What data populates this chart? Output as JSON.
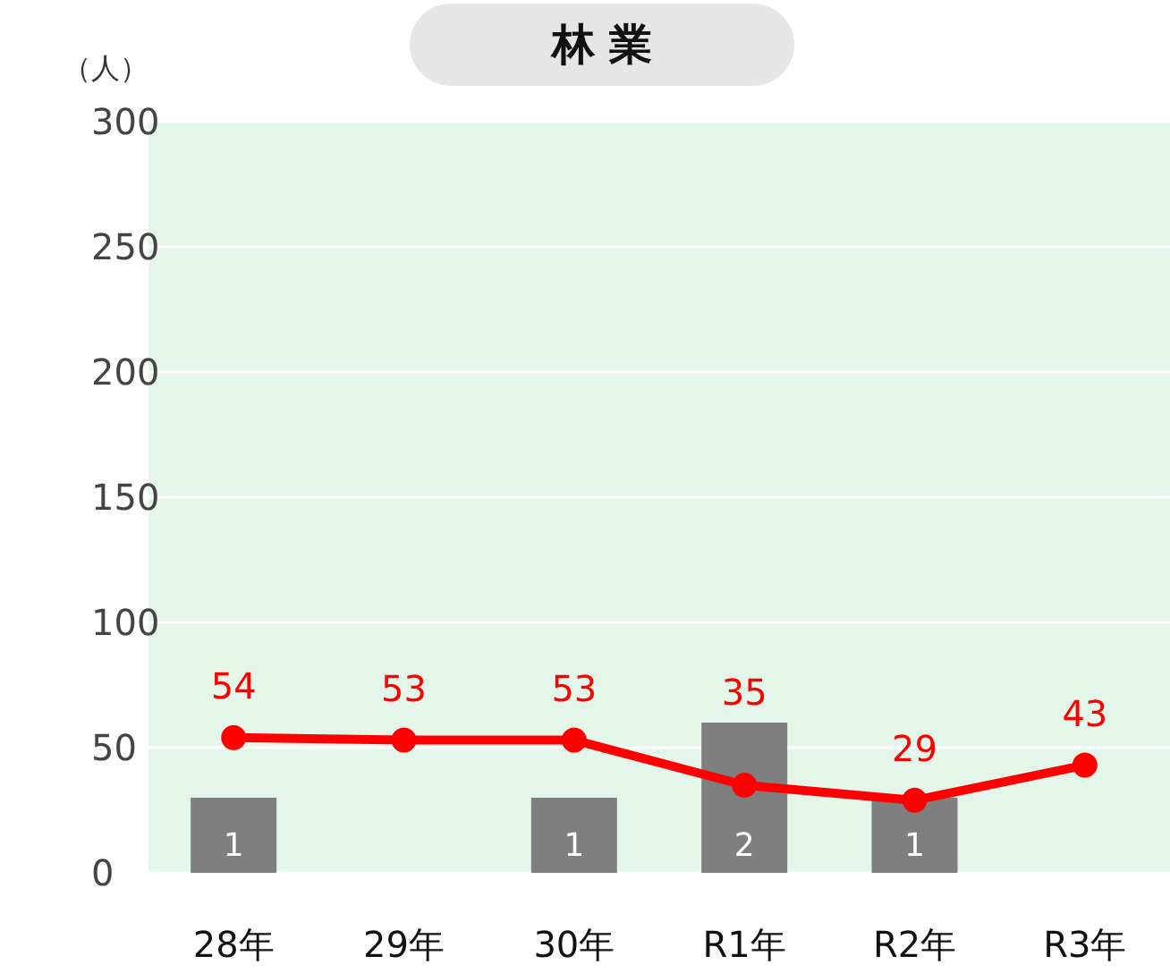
{
  "chart_data": {
    "type": "line",
    "title": "林 業",
    "ylabel": "（人）",
    "categories": [
      "28年",
      "29年",
      "30年",
      "R1年",
      "R2年",
      "R3年"
    ],
    "series": [
      {
        "type": "bar",
        "axis": "y2",
        "color": "#7f7f7f",
        "values": [
          1,
          null,
          1,
          2,
          1,
          null
        ]
      },
      {
        "color": "#ff0000",
        "values": [
          54,
          53,
          53,
          35,
          29,
          43
        ]
      }
    ],
    "ylim": [
      0,
      300
    ],
    "yticks": [
      0,
      50,
      100,
      150,
      200,
      250,
      300
    ],
    "y2lim": [
      0,
      10
    ],
    "grid": "y",
    "marker": "circle",
    "line_style": "solid",
    "data_labels": true
  }
}
